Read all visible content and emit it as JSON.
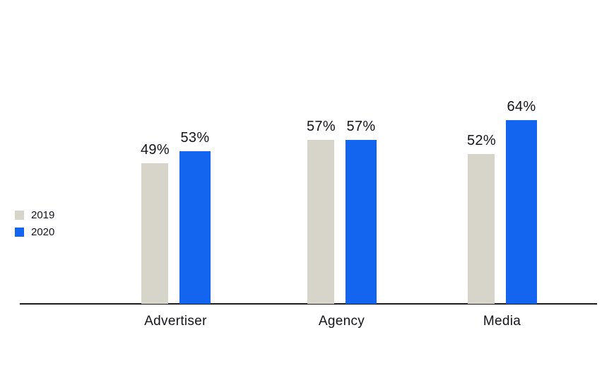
{
  "chart_data": {
    "type": "bar",
    "title": "",
    "xlabel": "",
    "ylabel": "",
    "categories": [
      "Advertiser",
      "Agency",
      "Media"
    ],
    "series": [
      {
        "name": "2019",
        "color": "#d7d4ca",
        "values": [
          49,
          57,
          52
        ]
      },
      {
        "name": "2020",
        "color": "#1365f0",
        "values": [
          53,
          57,
          64
        ]
      }
    ],
    "value_suffix": "%",
    "ylim": [
      0,
      100
    ],
    "grid": false,
    "legend_position": "left",
    "data_labels": true
  }
}
